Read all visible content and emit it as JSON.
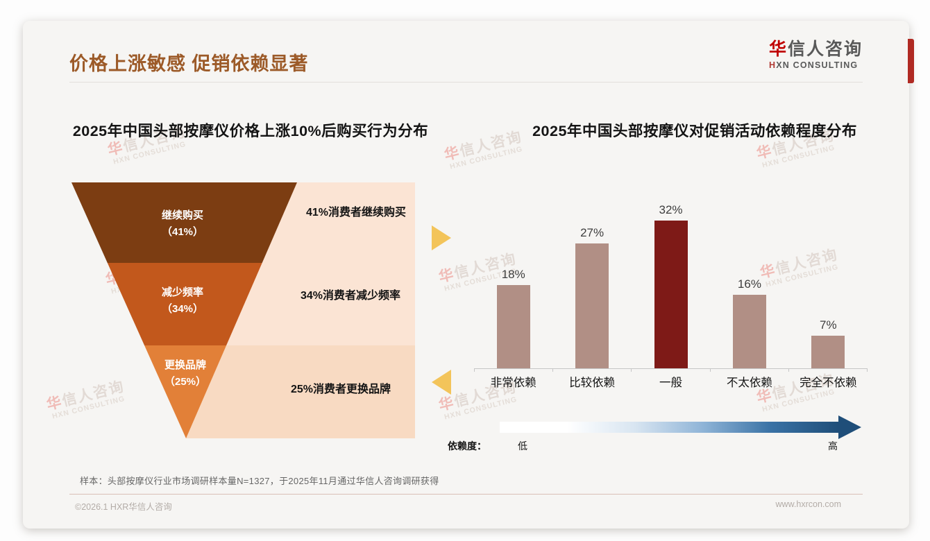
{
  "page": {
    "title": "价格上涨敏感 促销依赖显著",
    "title_color": "#9C5A28",
    "logo": {
      "accent": "华",
      "name_rest": "信人咨询",
      "subtitle_accent": "H",
      "subtitle_rest": "XN CONSULTING",
      "accent_color": "#C00000"
    },
    "sample_note": "样本：头部按摩仪行业市场调研样本量N=1327，于2025年11月通过华信人咨询调研获得",
    "copyright": "©2026.1 HXR华信人咨询",
    "website": "www.hxrcon.com"
  },
  "watermark": {
    "brand_accent": "华",
    "brand_rest": "信人咨询",
    "subtitle": "HXN CONSULTING"
  },
  "connector_arrows": {
    "color": "#F3C45A"
  },
  "dependency_scale": {
    "label": "依赖度：",
    "low": "低",
    "high": "高",
    "gradient": [
      "#FFFFFF",
      "#FFFFFF",
      "#D8E5F1",
      "#8FB4D7",
      "#3A72A5",
      "#1F4E79"
    ],
    "arrow_color": "#1F4E79"
  },
  "chart_data": [
    {
      "type": "funnel",
      "title": "2025年中国头部按摩仪价格上涨10%后购买行为分布",
      "categories": [
        "继续购买",
        "减少频率",
        "更换品牌"
      ],
      "values": [
        41,
        34,
        25
      ],
      "segments": [
        {
          "label": "继续购买",
          "value_label": "（41%）",
          "value": 41,
          "color": "#7C3D12",
          "annotation": "41%消费者继续购买"
        },
        {
          "label": "减少频率",
          "value_label": "（34%）",
          "value": 34,
          "color": "#C2581C",
          "annotation": "34%消费者减少频率"
        },
        {
          "label": "更换品牌",
          "value_label": "（25%）",
          "value": 25,
          "color": "#E28038",
          "annotation": "25%消费者更换品牌"
        }
      ],
      "panel_colors": [
        "#FBE4D4",
        "#FBE4D4",
        "#F8DAC2"
      ]
    },
    {
      "type": "bar",
      "title": "2025年中国头部按摩仪对促销活动依赖程度分布",
      "categories": [
        "非常依赖",
        "比较依赖",
        "一般",
        "不太依赖",
        "完全不依赖"
      ],
      "values": [
        18,
        27,
        32,
        16,
        7
      ],
      "bars": [
        {
          "category": "非常依赖",
          "value": 18,
          "value_label": "18%"
        },
        {
          "category": "比较依赖",
          "value": 27,
          "value_label": "27%"
        },
        {
          "category": "一般",
          "value": 32,
          "value_label": "32%"
        },
        {
          "category": "不太依赖",
          "value": 16,
          "value_label": "16%"
        },
        {
          "category": "完全不依赖",
          "value": 7,
          "value_label": "7%"
        }
      ],
      "bar_color": "#B18F85",
      "highlight_index": 2,
      "highlight_color": "#7E1A17",
      "ylim": [
        0,
        35
      ],
      "grid": false,
      "legend": false
    }
  ]
}
